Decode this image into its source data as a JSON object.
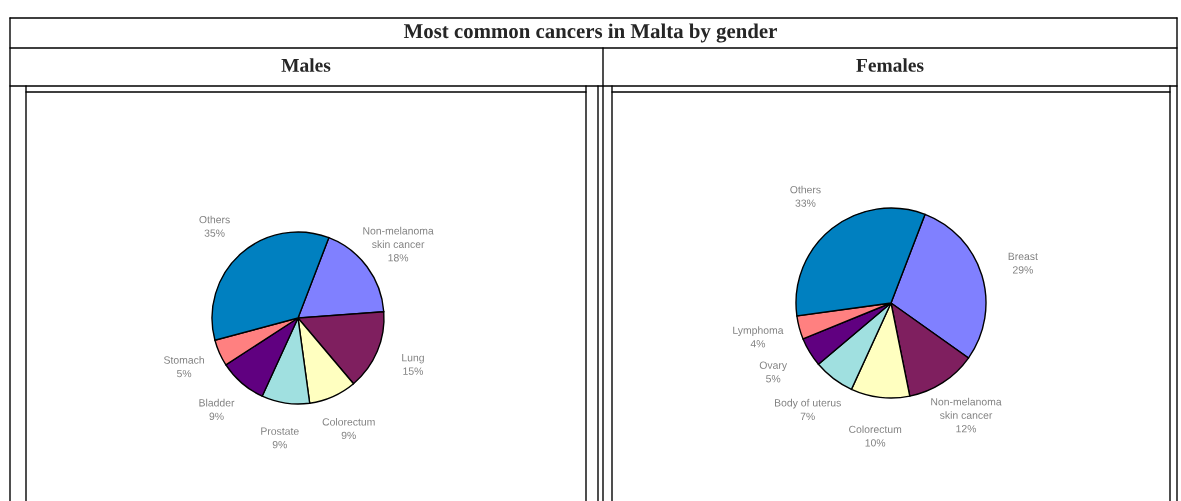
{
  "chart_data": [
    {
      "type": "pie",
      "title": "Most common cancers in Malta by gender",
      "subtitle": "Males",
      "categories": [
        "Non-melanoma\nskin cancer",
        "Lung",
        "Colorectum",
        "Prostate",
        "Bladder",
        "Stomach",
        "Others"
      ],
      "values": [
        18,
        15,
        9,
        9,
        9,
        5,
        35
      ],
      "value_labels": [
        "18%",
        "15%",
        "9%",
        "9%",
        "9%",
        "5%",
        "35%"
      ],
      "colors": [
        "#8080ff",
        "#7f1f5f",
        "#ffffc0",
        "#a0e0e0",
        "#600080",
        "#ff8080",
        "#0080c0"
      ]
    },
    {
      "type": "pie",
      "subtitle": "Females",
      "categories": [
        "Breast",
        "Non-melanoma\nskin cancer",
        "Colorectum",
        "Body of uterus",
        "Ovary",
        "Lymphoma",
        "Others"
      ],
      "values": [
        29,
        12,
        10,
        7,
        5,
        4,
        33
      ],
      "value_labels": [
        "29%",
        "12%",
        "10%",
        "7%",
        "5%",
        "4%",
        "33%"
      ],
      "colors": [
        "#8080ff",
        "#7f1f5f",
        "#ffffc0",
        "#a0e0e0",
        "#600080",
        "#ff8080",
        "#0080c0"
      ]
    }
  ]
}
